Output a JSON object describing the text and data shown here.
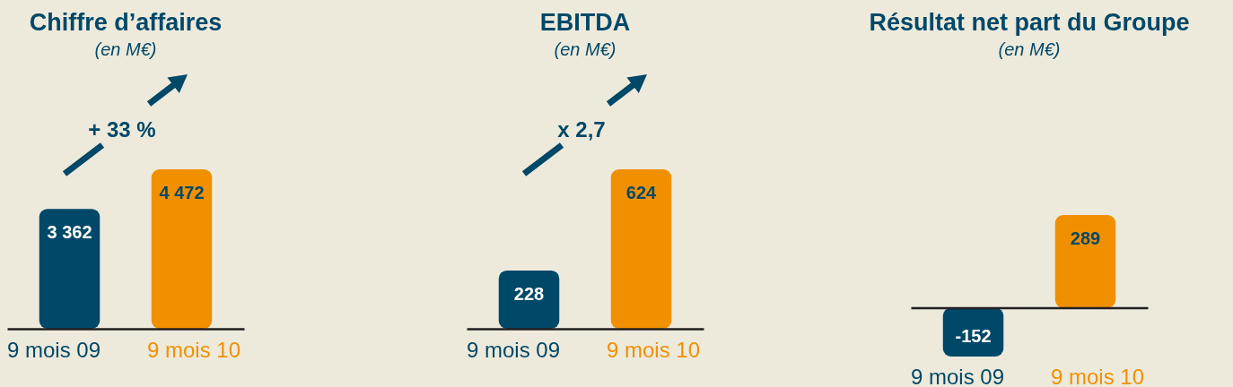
{
  "chart_data": [
    {
      "type": "bar",
      "title": "Chiffre d’affaires",
      "subtitle": "(en M€)",
      "categories": [
        "9 mois 09",
        "9 mois 10"
      ],
      "values": [
        3362,
        4472
      ],
      "colors": [
        "#004868",
        "#f09000"
      ],
      "value_labels": [
        "3 362",
        "4 472"
      ],
      "annotations": [
        "+ 33 %"
      ]
    },
    {
      "type": "bar",
      "title": "EBITDA",
      "subtitle": "(en M€)",
      "categories": [
        "9 mois 09",
        "9 mois 10"
      ],
      "values": [
        228,
        624
      ],
      "colors": [
        "#004868",
        "#f09000"
      ],
      "value_labels": [
        "228",
        "624"
      ],
      "annotations": [
        "x 2,7"
      ]
    },
    {
      "type": "bar",
      "title": "Résultat net part du Groupe",
      "subtitle": "(en M€)",
      "categories": [
        "9 mois 09",
        "9 mois 10"
      ],
      "values": [
        -152,
        289
      ],
      "colors": [
        "#004868",
        "#f09000"
      ],
      "value_labels": [
        "-152",
        "289"
      ]
    }
  ]
}
